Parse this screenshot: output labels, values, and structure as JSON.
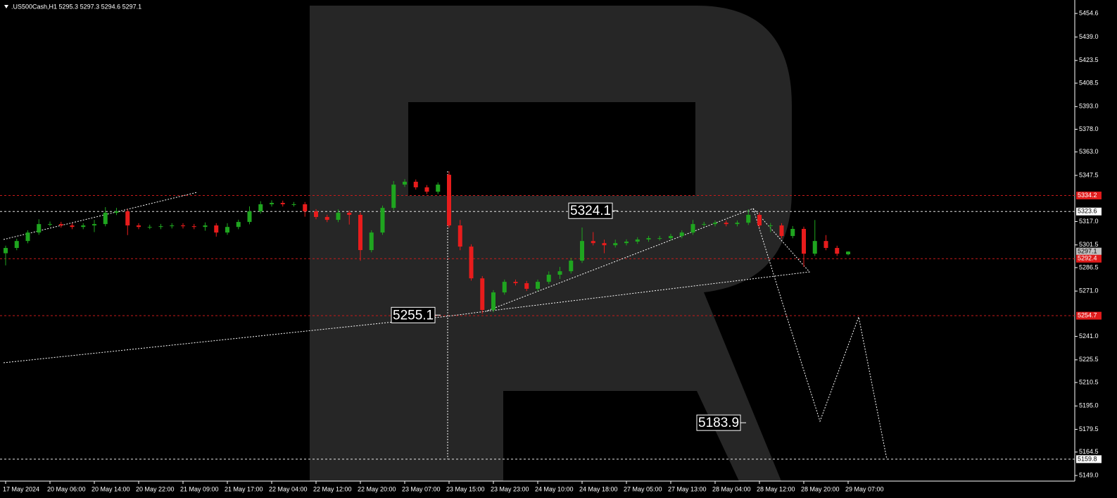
{
  "chart_data": {
    "type": "candlestick",
    "title": ".US500Cash,H1  5295.3 5297.3 5294.6 5297.1",
    "up_color": "#1fa51f",
    "down_color": "#e81c1c",
    "ylim": [
      5145.3,
      5463.5
    ],
    "yticks": [
      5454.6,
      {
        "value": 5439.0,
        "label": "5439.0"
      },
      5423.5,
      5408.5,
      {
        "value": 5393.0,
        "label": "5393.0"
      },
      {
        "value": 5378.0,
        "label": "5378.0"
      },
      {
        "value": 5363.0,
        "label": "5363.0"
      },
      5347.5,
      {
        "value": 5317.0,
        "label": "5317.0"
      },
      5301.5,
      5286.5,
      {
        "value": 5271.0,
        "label": "5271.0"
      },
      {
        "value": 5241.0,
        "label": "5241.0"
      },
      5225.5,
      5210.5,
      {
        "value": 5195.0,
        "label": "5195.0"
      },
      5179.5,
      5164.5,
      {
        "value": 5149.0,
        "label": "5149.0"
      }
    ],
    "categories": [
      "17 May 2024",
      null,
      null,
      null,
      "20 May 06:00",
      null,
      null,
      null,
      "20 May 14:00",
      null,
      null,
      null,
      "20 May 22:00",
      null,
      null,
      null,
      "21 May 09:00",
      null,
      null,
      null,
      "21 May 17:00",
      null,
      null,
      null,
      "22 May 04:00",
      null,
      null,
      null,
      "22 May 12:00",
      null,
      null,
      null,
      "22 May 20:00",
      null,
      null,
      null,
      "23 May 07:00",
      null,
      null,
      null,
      "23 May 15:00",
      null,
      null,
      null,
      "23 May 23:00",
      null,
      null,
      null,
      "24 May 10:00",
      null,
      null,
      null,
      "24 May 18:00",
      null,
      null,
      null,
      "27 May 05:00",
      null,
      null,
      null,
      "27 May 13:00",
      null,
      null,
      null,
      "28 May 04:00",
      null,
      null,
      null,
      "28 May 12:00",
      null,
      null,
      null,
      "28 May 20:00",
      null,
      null,
      null,
      "29 May 07:00"
    ],
    "open": [
      5296.0,
      5299.5,
      5304.1,
      5309.7,
      5315.3,
      5315.3,
      5314.4,
      5313.4,
      5314.4,
      5315.3,
      5322.8,
      5323.7,
      5314.4,
      5313.4,
      5313.4,
      5313.9,
      5314.4,
      5313.9,
      5313.4,
      5314.4,
      5309.7,
      5313.4,
      5316.7,
      5323.7,
      5328.4,
      5329.3,
      5328.4,
      5328.4,
      5323.7,
      5320.0,
      5318.1,
      5322.8,
      5321.4,
      5298.1,
      5309.7,
      5326.0,
      5341.4,
      5343.3,
      5339.6,
      5336.7,
      5347.9,
      5314.4,
      5300.4,
      5279.4,
      5258.5,
      5270.1,
      5277.1,
      5276.2,
      5272.5,
      5277.1,
      5281.8,
      5284.1,
      5291.1,
      5304.1,
      5302.7,
      5301.3,
      5302.7,
      5303.7,
      5305.1,
      5306.0,
      5306.0,
      5307.4,
      5309.7,
      5315.3,
      5315.3,
      5316.2,
      5315.3,
      5316.2,
      5321.4,
      5314.4,
      5314.4,
      5307.4,
      5312.1,
      5295.7,
      5304.1,
      5299.5,
      5295.3
    ],
    "high": [
      5301.0,
      5305.6,
      5311.2,
      5318.5,
      5317.0,
      5316.8,
      5315.9,
      5315.9,
      5318.0,
      5326.5,
      5326.0,
      5325.2,
      5315.9,
      5314.9,
      5315.4,
      5315.9,
      5315.9,
      5315.4,
      5316.4,
      5315.9,
      5315.9,
      5318.2,
      5327.0,
      5330.4,
      5331.0,
      5330.8,
      5329.9,
      5329.9,
      5325.2,
      5321.5,
      5325.0,
      5324.3,
      5322.9,
      5311.2,
      5327.5,
      5343.8,
      5345.0,
      5344.8,
      5341.1,
      5342.9,
      5350.2,
      5318.0,
      5301.9,
      5280.9,
      5271.6,
      5278.6,
      5278.6,
      5277.7,
      5278.6,
      5284.0,
      5287.0,
      5293.0,
      5313.0,
      5310.0,
      5305.0,
      5305.0,
      5305.2,
      5306.6,
      5307.5,
      5307.5,
      5308.9,
      5311.2,
      5318.0,
      5316.8,
      5317.7,
      5317.7,
      5317.7,
      5325.0,
      5323.0,
      5316.0,
      5315.9,
      5314.0,
      5313.6,
      5318.0,
      5308.0,
      5301.0,
      5297.3
    ],
    "low": [
      5288.0,
      5298.0,
      5302.6,
      5308.2,
      5313.8,
      5312.9,
      5311.9,
      5311.9,
      5310.0,
      5313.8,
      5321.3,
      5308.0,
      5311.9,
      5311.9,
      5311.9,
      5312.4,
      5312.4,
      5311.9,
      5310.9,
      5307.0,
      5308.2,
      5311.9,
      5315.2,
      5322.2,
      5326.9,
      5326.9,
      5326.9,
      5320.2,
      5318.5,
      5316.6,
      5316.6,
      5315.0,
      5291.0,
      5296.6,
      5308.2,
      5324.5,
      5339.9,
      5338.1,
      5335.2,
      5335.2,
      5312.9,
      5298.0,
      5277.9,
      5256.0,
      5257.0,
      5268.6,
      5274.7,
      5271.0,
      5271.0,
      5275.6,
      5279.0,
      5282.6,
      5289.6,
      5301.2,
      5296.0,
      5299.8,
      5301.2,
      5302.2,
      5303.6,
      5304.5,
      5304.5,
      5305.9,
      5308.2,
      5313.8,
      5313.8,
      5313.8,
      5313.8,
      5314.7,
      5312.9,
      5310.0,
      5305.9,
      5305.9,
      5287.0,
      5294.2,
      5298.0,
      5294.2,
      5294.6
    ],
    "close": [
      5299.5,
      5304.1,
      5309.7,
      5315.3,
      5315.3,
      5314.4,
      5313.4,
      5314.4,
      5315.3,
      5322.8,
      5323.7,
      5314.4,
      5313.4,
      5313.4,
      5313.9,
      5314.4,
      5313.9,
      5313.4,
      5314.4,
      5309.7,
      5313.4,
      5316.7,
      5323.7,
      5328.4,
      5329.3,
      5328.4,
      5328.4,
      5323.7,
      5320.0,
      5318.1,
      5322.8,
      5321.4,
      5298.1,
      5309.7,
      5326.0,
      5341.4,
      5343.3,
      5339.6,
      5336.7,
      5341.4,
      5314.4,
      5300.4,
      5279.4,
      5258.5,
      5270.1,
      5277.1,
      5276.2,
      5272.5,
      5277.1,
      5281.8,
      5284.1,
      5291.1,
      5304.1,
      5302.7,
      5301.3,
      5302.7,
      5303.7,
      5305.1,
      5306.0,
      5306.0,
      5307.4,
      5309.7,
      5315.3,
      5315.3,
      5316.2,
      5315.3,
      5316.2,
      5321.4,
      5314.4,
      5314.4,
      5307.4,
      5312.1,
      5295.7,
      5304.1,
      5299.5,
      5295.7,
      5297.1
    ],
    "levels": [
      {
        "price": 5334.2,
        "color": "#e01b1b",
        "line": "#c81a1a"
      },
      {
        "price": 5323.6,
        "color": "#ffffff",
        "line": "#e6e6e6"
      },
      {
        "price": 5297.1,
        "color": "#c0c0c0",
        "line": null
      },
      {
        "price": 5292.4,
        "color": "#e01b1b",
        "line": "#c81a1a"
      },
      {
        "price": 5254.7,
        "color": "#e01b1b",
        "line": "#c81a1a"
      },
      {
        "price": 5159.8,
        "color": "#ffffff",
        "line": "#e6e6e6"
      }
    ],
    "annotations": [
      5324.1,
      5255.1,
      5183.9
    ]
  }
}
